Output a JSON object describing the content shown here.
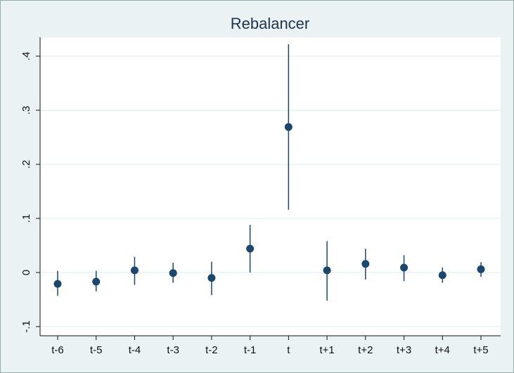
{
  "chart_data": {
    "type": "errorbar",
    "title": "Rebalancer",
    "categories": [
      "t-6",
      "t-5",
      "t-4",
      "t-3",
      "t-2",
      "t-1",
      "t",
      "t+1",
      "t+2",
      "t+3",
      "t+4",
      "t+5"
    ],
    "series": [
      {
        "color": "#1a476f",
        "values": [
          -0.021,
          -0.017,
          0.004,
          -0.001,
          -0.01,
          0.044,
          0.269,
          0.004,
          0.016,
          0.009,
          -0.005,
          0.006
        ],
        "lower": [
          -0.043,
          -0.035,
          -0.023,
          -0.019,
          -0.042,
          0.0,
          0.116,
          -0.052,
          -0.013,
          -0.016,
          -0.019,
          -0.008
        ],
        "upper": [
          0.003,
          0.003,
          0.029,
          0.018,
          0.02,
          0.088,
          0.422,
          0.058,
          0.044,
          0.032,
          0.009,
          0.019
        ]
      }
    ],
    "ylim": [
      -0.117,
      0.435
    ],
    "yticks": [
      {
        "value": -0.1,
        "label": "-.1"
      },
      0,
      {
        "value": 0.1,
        "label": ".1"
      },
      {
        "value": 0.2,
        "label": ".2"
      },
      {
        "value": 0.3,
        "label": ".3"
      },
      {
        "value": 0.4,
        "label": ".4"
      }
    ],
    "grid": true
  }
}
